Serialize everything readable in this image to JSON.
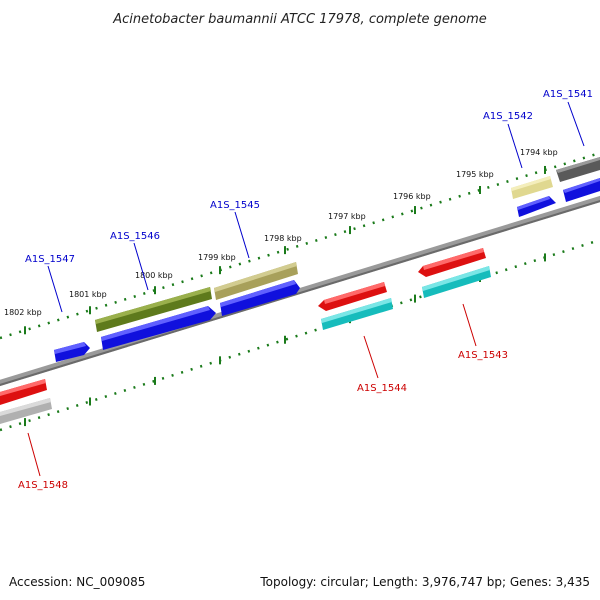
{
  "title": "Acinetobacter baumannii ATCC 17978, complete genome",
  "footer": {
    "accession": "Accession: NC_009085",
    "summary": "Topology: circular; Length: 3,976,747 bp; Genes: 3,435"
  },
  "colors": {
    "backbone": "#808080",
    "tick": "#1a7a1a",
    "label_top": "#0000cc",
    "label_bottom": "#cc0000"
  },
  "ticks": [
    "1802 kbp",
    "1801 kbp",
    "1800 kbp",
    "1799 kbp",
    "1798 kbp",
    "1797 kbp",
    "1796 kbp",
    "1795 kbp",
    "1794 kbp"
  ],
  "genes": [
    {
      "name": "A1S_1541",
      "strand": "top"
    },
    {
      "name": "A1S_1542",
      "strand": "top"
    },
    {
      "name": "A1S_1545",
      "strand": "top"
    },
    {
      "name": "A1S_1546",
      "strand": "top"
    },
    {
      "name": "A1S_1547",
      "strand": "top"
    },
    {
      "name": "A1S_1543",
      "strand": "bottom"
    },
    {
      "name": "A1S_1544",
      "strand": "bottom"
    },
    {
      "name": "A1S_1548",
      "strand": "bottom"
    }
  ]
}
